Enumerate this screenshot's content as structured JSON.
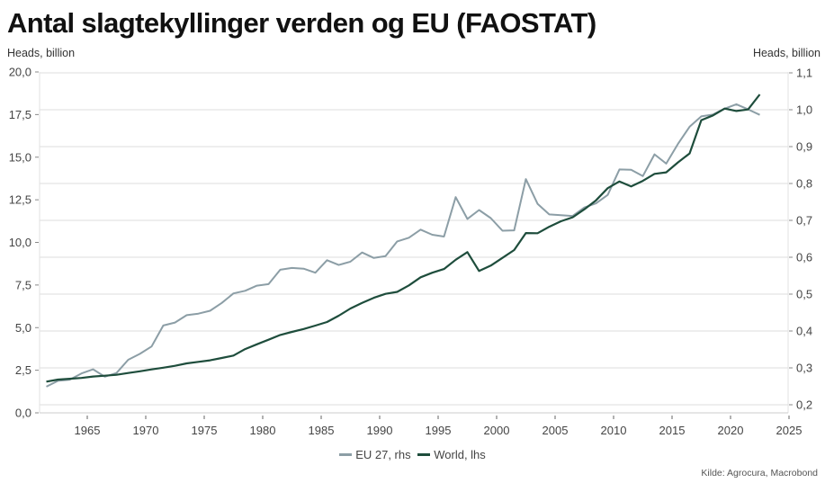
{
  "title": "Antal slagtekyllinger verden og EU (FAOSTAT)",
  "left_axis_unit": "Heads, billion",
  "right_axis_unit": "Heads, billion",
  "source": "Kilde: Agrocura, Macrobond",
  "colors": {
    "eu": "#8c9ea6",
    "world": "#1e4d3c",
    "grid": "#dddddd",
    "axis": "#bbbbbb"
  },
  "chart_data": {
    "type": "line",
    "title": "Antal slagtekyllinger verden og EU (FAOSTAT)",
    "xlabel": "",
    "ylabel": "Heads, billion",
    "y2label": "Heads, billion",
    "xlim": [
      1961,
      2025
    ],
    "ylim": [
      0,
      20
    ],
    "y2lim": [
      0.2,
      1.1
    ],
    "x_ticks": [
      1965,
      1970,
      1975,
      1980,
      1985,
      1990,
      1995,
      2000,
      2005,
      2010,
      2015,
      2020,
      2025
    ],
    "x_tick_labels": [
      "1965",
      "1970",
      "1975",
      "1980",
      "1985",
      "1990",
      "1995",
      "2000",
      "2005",
      "2010",
      "2015",
      "2020",
      "2025"
    ],
    "y_ticks": [
      0,
      2.5,
      5,
      7.5,
      10,
      12.5,
      15,
      17.5,
      20
    ],
    "y_tick_labels": [
      "0,0",
      "2,5",
      "5,0",
      "7,5",
      "10,0",
      "12,5",
      "15,0",
      "17,5",
      "20,0"
    ],
    "y2_ticks": [
      0.2,
      0.3,
      0.4,
      0.5,
      0.6,
      0.7,
      0.8,
      0.9,
      1.0,
      1.1
    ],
    "y2_tick_labels": [
      "0,2",
      "0,3",
      "0,4",
      "0,5",
      "0,6",
      "0,7",
      "0,8",
      "0,9",
      "1,0",
      "1,1"
    ],
    "grid": true,
    "legend_position": "bottom-center",
    "x": [
      1961,
      1962,
      1963,
      1964,
      1965,
      1966,
      1967,
      1968,
      1969,
      1970,
      1971,
      1972,
      1973,
      1974,
      1975,
      1976,
      1977,
      1978,
      1979,
      1980,
      1981,
      1982,
      1983,
      1984,
      1985,
      1986,
      1987,
      1988,
      1989,
      1990,
      1991,
      1992,
      1993,
      1994,
      1995,
      1996,
      1997,
      1998,
      1999,
      2000,
      2001,
      2002,
      2003,
      2004,
      2005,
      2006,
      2007,
      2008,
      2009,
      2010,
      2011,
      2012,
      2013,
      2014,
      2015,
      2016,
      2017,
      2018,
      2019,
      2020,
      2021,
      2022
    ],
    "series": [
      {
        "name": "EU 27, rhs",
        "axis": "right",
        "values": [
          0.249,
          0.265,
          0.268,
          0.285,
          0.296,
          0.276,
          0.286,
          0.322,
          0.338,
          0.358,
          0.415,
          0.423,
          0.443,
          0.447,
          0.455,
          0.476,
          0.502,
          0.509,
          0.523,
          0.527,
          0.566,
          0.571,
          0.569,
          0.558,
          0.592,
          0.579,
          0.588,
          0.613,
          0.598,
          0.603,
          0.643,
          0.653,
          0.675,
          0.661,
          0.656,
          0.763,
          0.704,
          0.728,
          0.706,
          0.672,
          0.673,
          0.812,
          0.745,
          0.716,
          0.714,
          0.712,
          0.735,
          0.746,
          0.769,
          0.838,
          0.837,
          0.82,
          0.879,
          0.854,
          0.907,
          0.954,
          0.982,
          0.987,
          1.003,
          1.015,
          1.001,
          0.986
        ]
      },
      {
        "name": "World, lhs",
        "axis": "left",
        "values": [
          1.83,
          1.95,
          2.0,
          2.05,
          2.13,
          2.18,
          2.23,
          2.34,
          2.44,
          2.55,
          2.65,
          2.76,
          2.9,
          2.99,
          3.08,
          3.22,
          3.36,
          3.74,
          4.02,
          4.29,
          4.57,
          4.75,
          4.92,
          5.12,
          5.33,
          5.7,
          6.12,
          6.45,
          6.75,
          6.98,
          7.1,
          7.48,
          7.95,
          8.22,
          8.44,
          8.98,
          9.43,
          8.32,
          8.64,
          9.09,
          9.55,
          10.55,
          10.54,
          10.92,
          11.24,
          11.47,
          11.94,
          12.47,
          13.18,
          13.58,
          13.28,
          13.61,
          14.02,
          14.11,
          14.69,
          15.22,
          17.17,
          17.45,
          17.85,
          17.71,
          17.8,
          18.68
        ]
      }
    ]
  }
}
